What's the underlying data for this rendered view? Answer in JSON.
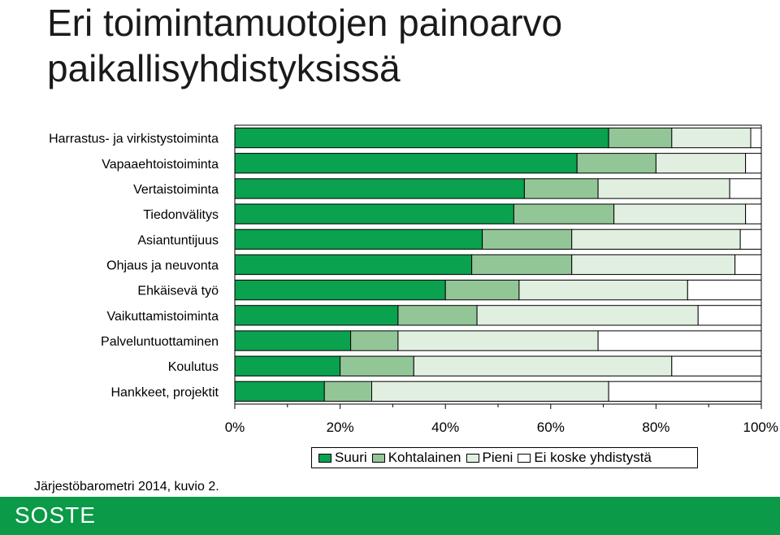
{
  "title": {
    "line1": "Eri toimintamuotojen painoarvo",
    "line2": "paikallisyhdistyksissä"
  },
  "source_note": "Järjestöbarometri 2014, kuvio 2.",
  "logo_text": "SOSTE",
  "colors": {
    "Suuri": "#0aa14f",
    "Kohtalainen": "#93c697",
    "Pieni": "#e1efe1",
    "Ei koske yhdistystä": "#ffffff",
    "footer": "#0b9a48"
  },
  "chart_data": {
    "type": "bar",
    "orientation": "horizontal",
    "stacked": true,
    "categories": [
      "Harrastus- ja virkistystoiminta",
      "Vapaaehtoistoiminta",
      "Vertaistoiminta",
      "Tiedonvälitys",
      "Asiantuntijuus",
      "Ohjaus ja neuvonta",
      "Ehkäisevä työ",
      "Vaikuttamistoiminta",
      "Palveluntuottaminen",
      "Koulutus",
      "Hankkeet, projektit"
    ],
    "series": [
      {
        "name": "Suuri",
        "values": [
          71,
          65,
          55,
          53,
          47,
          45,
          40,
          31,
          22,
          20,
          17
        ]
      },
      {
        "name": "Kohtalainen",
        "values": [
          12,
          15,
          14,
          19,
          17,
          19,
          14,
          15,
          9,
          14,
          9
        ]
      },
      {
        "name": "Pieni",
        "values": [
          15,
          17,
          25,
          25,
          32,
          31,
          32,
          42,
          38,
          49,
          45
        ]
      },
      {
        "name": "Ei koske yhdistystä",
        "values": [
          2,
          3,
          6,
          3,
          4,
          5,
          14,
          12,
          31,
          17,
          29
        ]
      }
    ],
    "x_ticks": [
      "0%",
      "20%",
      "40%",
      "60%",
      "80%",
      "100%"
    ],
    "xlim": [
      0,
      100
    ],
    "legend_position": "bottom",
    "grid": false
  }
}
